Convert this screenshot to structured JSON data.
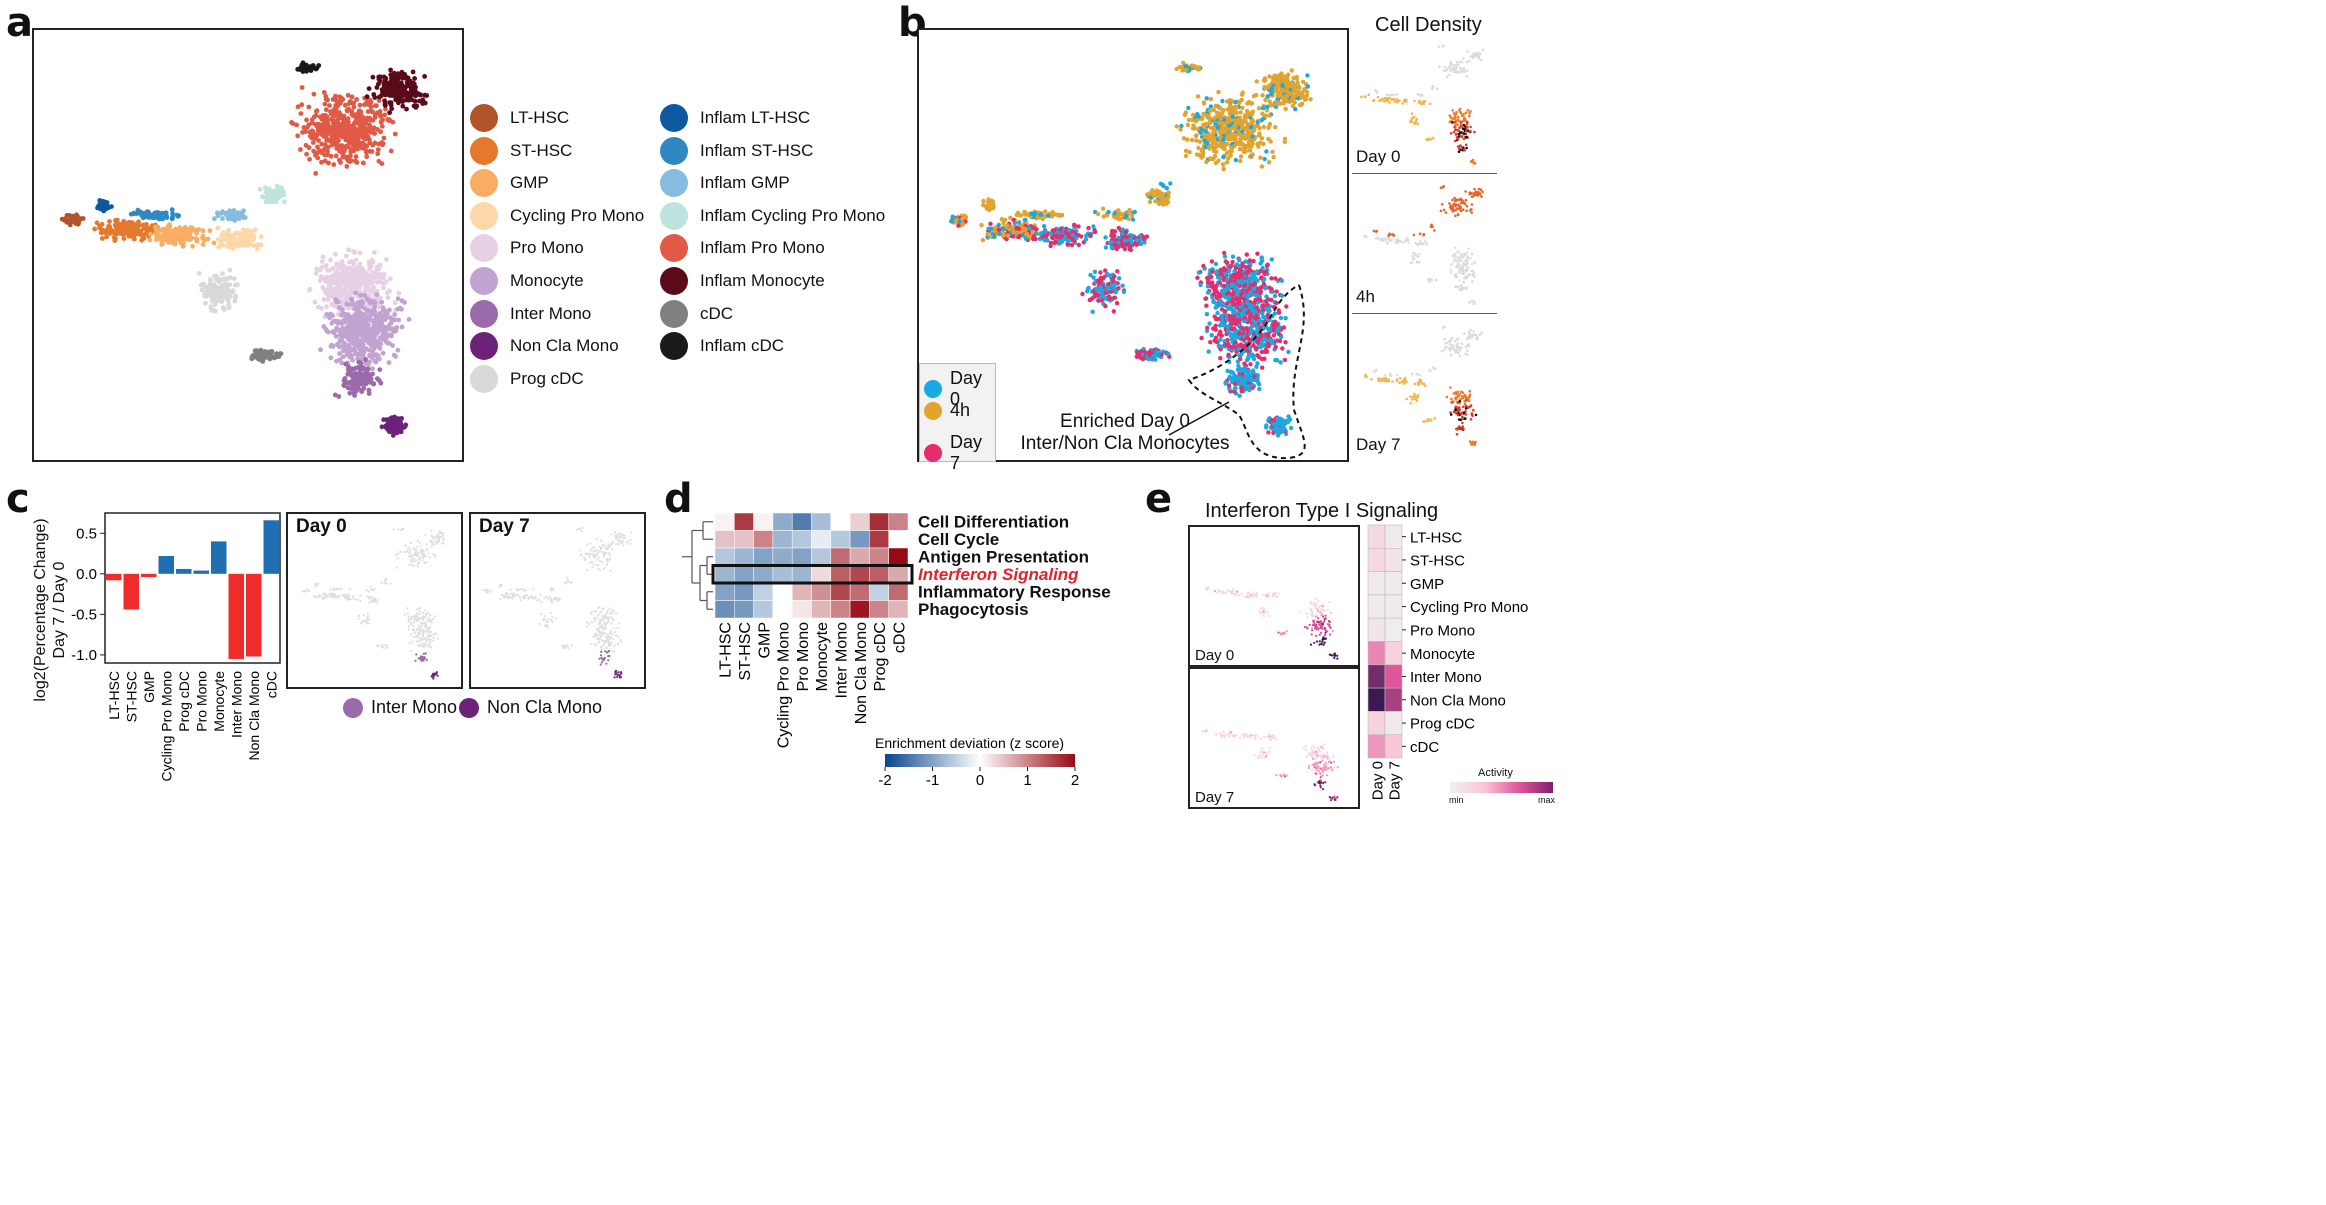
{
  "panels": {
    "a": "a",
    "b": "b",
    "c": "c",
    "d": "d",
    "e": "e"
  },
  "colors": {
    "LT-HSC": "#b2542a",
    "ST-HSC": "#e4792e",
    "GMP": "#f9ad62",
    "Cycling Pro Mono": "#fcd7a8",
    "Pro Mono": "#e7d0e4",
    "Monocyte": "#c1a2d0",
    "Inter Mono": "#9a6aab",
    "Non Cla Mono": "#6b2278",
    "Prog cDC": "#d9d9d9",
    "Inflam LT-HSC": "#0d58a0",
    "Inflam ST-HSC": "#2f88c2",
    "Inflam GMP": "#85bcdf",
    "Inflam Cycling Pro Mono": "#bfe3df",
    "Inflam Pro Mono": "#e15a46",
    "Inflam Monocyte": "#5a0a19",
    "cDC": "#808080",
    "Inflam cDC": "#1a1a1a",
    "Day 0": "#1aa9e1",
    "4h": "#e2a42f",
    "Day 7": "#e82b6b"
  },
  "panel_a": {
    "legend_col1": [
      "LT-HSC",
      "ST-HSC",
      "GMP",
      "Cycling Pro Mono",
      "Pro Mono",
      "Monocyte",
      "Inter Mono",
      "Non Cla Mono",
      "Prog cDC"
    ],
    "legend_col2": [
      "Inflam LT-HSC",
      "Inflam ST-HSC",
      "Inflam GMP",
      "Inflam Cycling Pro Mono",
      "Inflam Pro Mono",
      "Inflam Monocyte",
      "cDC",
      "Inflam cDC"
    ]
  },
  "panel_b": {
    "legend": [
      "Day 0",
      "4h",
      "Day 7"
    ],
    "annotation_line1": "Enriched Day 0",
    "annotation_line2": "Inter/Non Cla Monocytes",
    "density_title": "Cell Density",
    "density_labels": [
      "Day 0",
      "4h",
      "Day 7"
    ]
  },
  "panel_c": {
    "umap_labels": [
      "Day 0",
      "Day 7"
    ],
    "legend": [
      "Inter Mono",
      "Non Cla Mono"
    ]
  },
  "chart_data": [
    {
      "type": "bar",
      "ylabel_line1": "log2(Percentage Change)",
      "ylabel_line2": "Day 7 / Day 0",
      "categories": [
        "LT-HSC",
        "ST-HSC",
        "GMP",
        "Cycling Pro Mono",
        "Prog cDC",
        "Pro Mono",
        "Monocyte",
        "Inter Mono",
        "Non Cla Mono",
        "cDC"
      ],
      "values": [
        -0.08,
        -0.44,
        -0.04,
        0.22,
        0.06,
        0.04,
        0.4,
        -1.05,
        -1.02,
        0.66
      ],
      "yticks": [
        "0.5",
        "0.0",
        "-0.5",
        "-1.0"
      ],
      "ylim": [
        -1.1,
        0.75
      ],
      "positive_color": "#1f6fb2",
      "negative_color": "#ef2b2b"
    },
    {
      "type": "heatmap",
      "rows": [
        "Cell Differentiation",
        "Cell Cycle",
        "Antigen Presentation",
        "Interferon Signaling",
        "Inflammatory Response",
        "Phagocytosis"
      ],
      "highlight_row": "Interferon Signaling",
      "columns": [
        "LT-HSC",
        "ST-HSC",
        "GMP",
        "Cycling Pro Mono",
        "Pro Mono",
        "Monocyte",
        "Inter Mono",
        "Non Cla Mono",
        "Prog cDC",
        "cDC"
      ],
      "values": [
        [
          0.1,
          1.6,
          0.1,
          -0.9,
          -1.4,
          -0.7,
          0.0,
          0.4,
          1.7,
          1.0
        ],
        [
          0.5,
          0.5,
          1.0,
          -0.8,
          -0.6,
          -0.2,
          -0.6,
          -1.1,
          1.6,
          0.0
        ],
        [
          -0.6,
          -0.8,
          -1.0,
          -0.9,
          -1.0,
          -0.6,
          1.2,
          0.7,
          1.0,
          2.0
        ],
        [
          -0.8,
          -1.0,
          -0.9,
          -0.7,
          -0.8,
          0.3,
          1.3,
          1.5,
          1.3,
          0.7
        ],
        [
          -1.0,
          -1.1,
          -0.5,
          0.0,
          0.6,
          0.9,
          1.5,
          1.2,
          -0.5,
          1.2
        ],
        [
          -1.2,
          -1.1,
          -0.6,
          0.0,
          0.2,
          0.6,
          1.0,
          1.9,
          1.0,
          0.6
        ]
      ],
      "colorbar_title": "Enrichment deviation (z score)",
      "colorbar_ticks": [
        "-2",
        "-1",
        "0",
        "1",
        "2"
      ],
      "zlim": [
        -2,
        2
      ]
    },
    {
      "type": "heatmap",
      "title": "Interferon Type I Signaling",
      "rows": [
        "LT-HSC",
        "ST-HSC",
        "GMP",
        "Cycling Pro Mono",
        "Pro Mono",
        "Monocyte",
        "Inter Mono",
        "Non Cla Mono",
        "Prog cDC",
        "cDC"
      ],
      "columns": [
        "Day 0",
        "Day 7"
      ],
      "values": [
        [
          0.2,
          0.05
        ],
        [
          0.2,
          0.1
        ],
        [
          0.05,
          0.05
        ],
        [
          0.05,
          0.05
        ],
        [
          0.1,
          0.02
        ],
        [
          0.55,
          0.25
        ],
        [
          0.9,
          0.7
        ],
        [
          1.0,
          0.8
        ],
        [
          0.25,
          0.05
        ],
        [
          0.5,
          0.35
        ]
      ],
      "umap_labels": [
        "Day 0",
        "Day 7"
      ],
      "colorbar_title": "Activity",
      "colorbar_min": "min",
      "colorbar_max": "max"
    }
  ]
}
